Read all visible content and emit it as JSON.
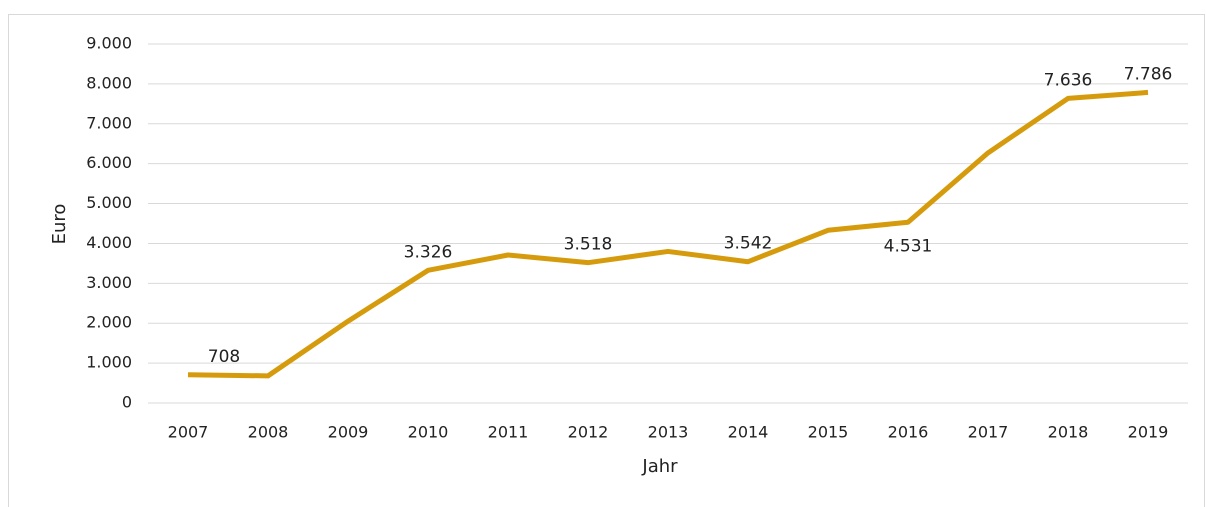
{
  "chart_data": {
    "type": "line",
    "x_label": "Jahr",
    "y_label": "Euro",
    "categories": [
      "2007",
      "2008",
      "2009",
      "2010",
      "2011",
      "2012",
      "2013",
      "2014",
      "2015",
      "2016",
      "2017",
      "2018",
      "2019"
    ],
    "series": [
      {
        "color": "#d59b0c",
        "values": [
          708,
          680,
          2050,
          3326,
          3710,
          3518,
          3800,
          3542,
          4330,
          4531,
          6270,
          7636,
          7786
        ],
        "value_labels": [
          "708",
          null,
          null,
          "3.326",
          null,
          "3.518",
          null,
          "3.542",
          null,
          "4.531",
          null,
          "7.636",
          "7.786"
        ]
      }
    ],
    "ylim": [
      0,
      9000
    ],
    "yticks": [
      0,
      {
        "value": 1000,
        "label": "1.000"
      },
      {
        "value": 2000,
        "label": "2.000"
      },
      {
        "value": 3000,
        "label": "3.000"
      },
      {
        "value": 4000,
        "label": "4.000"
      },
      {
        "value": 5000,
        "label": "5.000"
      },
      {
        "value": 6000,
        "label": "6.000"
      },
      {
        "value": 7000,
        "label": "7.000"
      },
      {
        "value": 8000,
        "label": "8.000"
      },
      {
        "value": 9000,
        "label": "9.000"
      }
    ],
    "grid": true
  }
}
